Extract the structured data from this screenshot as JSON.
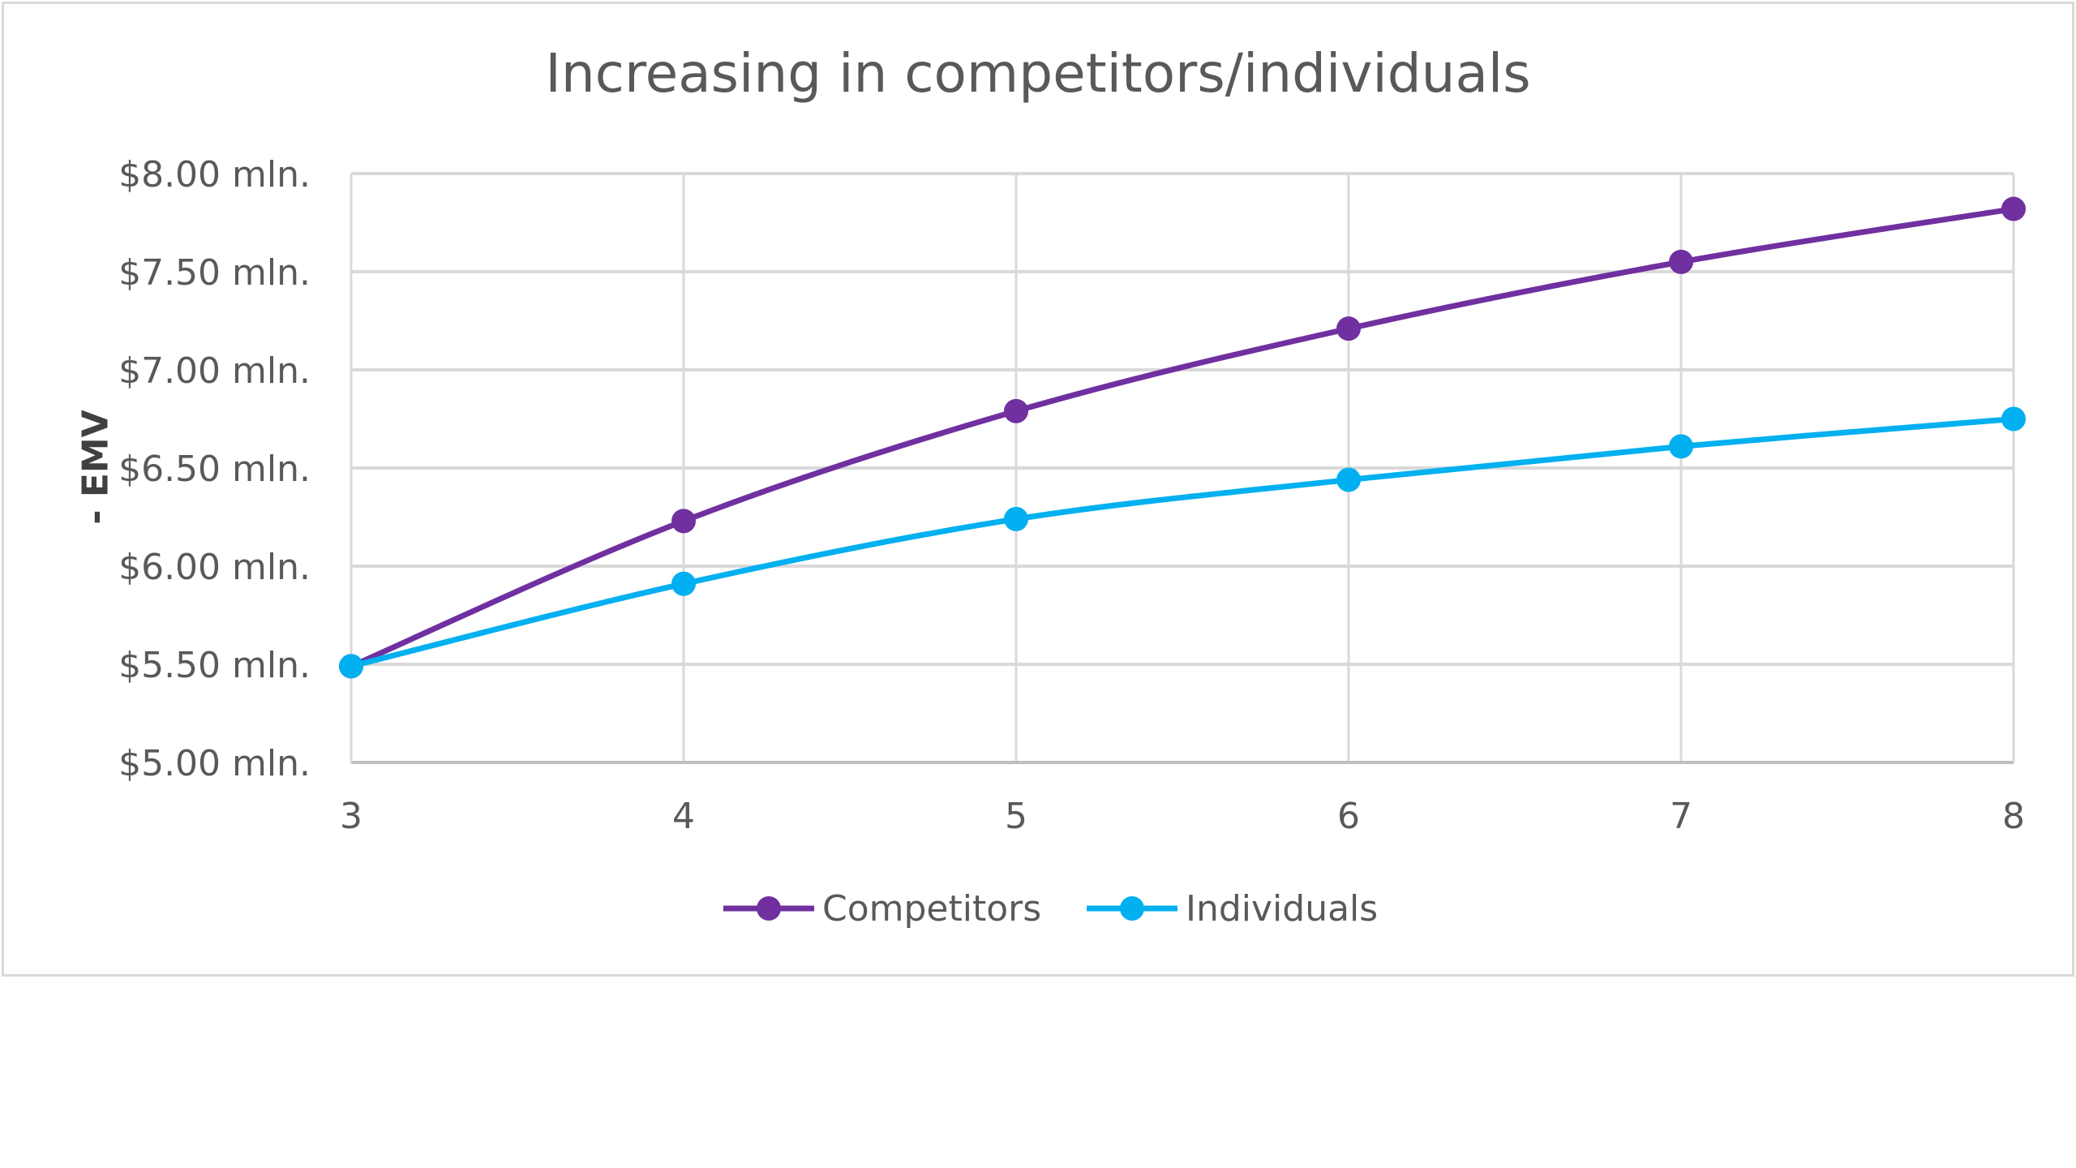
{
  "chart_data": {
    "type": "line",
    "title": "Increasing in competitors/individuals",
    "xlabel": "",
    "ylabel": "- EMV",
    "x": [
      3,
      4,
      5,
      6,
      7,
      8
    ],
    "x_tick_labels": [
      "3",
      "4",
      "5",
      "6",
      "7",
      "8"
    ],
    "y_tick_labels": [
      "$8.00 mln.",
      "$7.50 mln.",
      "$7.00 mln.",
      "$6.50 mln.",
      "$6.00 mln.",
      "$5.50 mln.",
      "$5.00 mln."
    ],
    "y_ticks": [
      8.0,
      7.5,
      7.0,
      6.5,
      6.0,
      5.5,
      5.0
    ],
    "ylim": [
      5.0,
      8.0
    ],
    "grid": true,
    "legend_position": "bottom",
    "smooth": true,
    "series": [
      {
        "name": "Competitors",
        "color": "#7030a0",
        "values": [
          5.49,
          6.23,
          6.79,
          7.21,
          7.55,
          7.82
        ]
      },
      {
        "name": "Individuals",
        "color": "#00b0f0",
        "values": [
          5.49,
          5.91,
          6.24,
          6.44,
          6.61,
          6.75
        ]
      }
    ]
  }
}
